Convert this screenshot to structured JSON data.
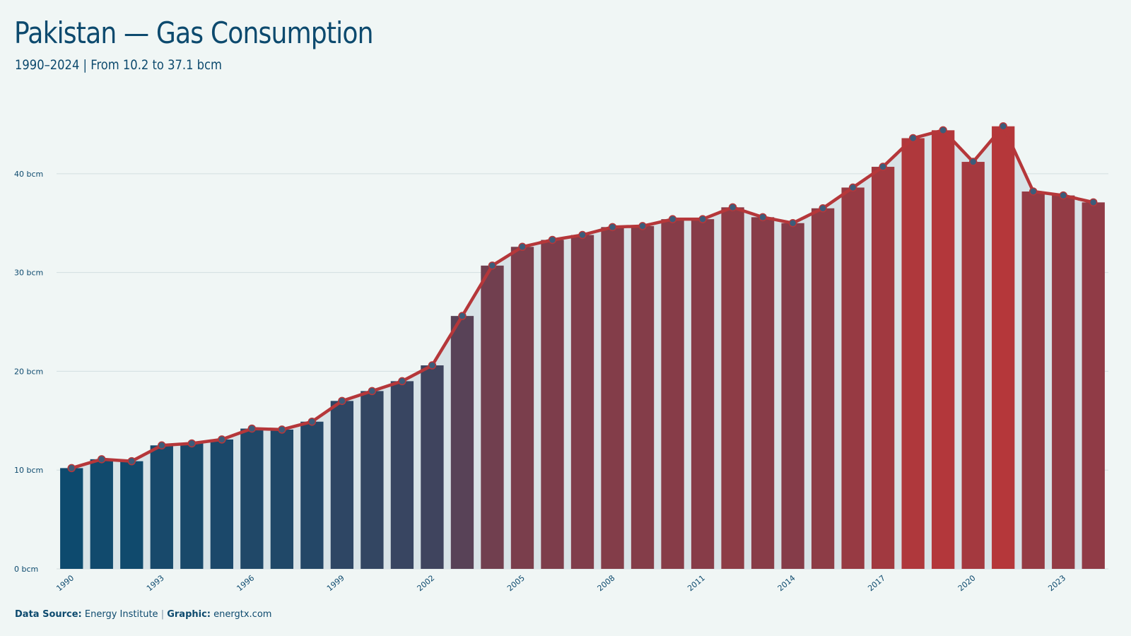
{
  "header": {
    "title": "Pakistan — Gas Consumption",
    "subtitle": "1990–2024 | From 10.2 to 37.1 bcm"
  },
  "footer": {
    "source_label": "Data Source:",
    "source_value": "Energy Institute",
    "separator": "|",
    "graphic_label": "Graphic:",
    "graphic_value": "energtx.com"
  },
  "colors": {
    "background": "#f0f6f5",
    "line": "#b5373a",
    "marker_fill": "#3c5c7a",
    "bar_low": "#0d4a6e",
    "bar_high": "#b5373a",
    "area": "#d8e3e7",
    "grid": "#d3dfe0"
  },
  "chart_data": {
    "type": "bar",
    "x": [
      1990,
      1991,
      1992,
      1993,
      1994,
      1995,
      1996,
      1997,
      1998,
      1999,
      2000,
      2001,
      2002,
      2003,
      2004,
      2005,
      2006,
      2007,
      2008,
      2009,
      2010,
      2011,
      2012,
      2013,
      2014,
      2015,
      2016,
      2017,
      2018,
      2019,
      2020,
      2021,
      2022,
      2023,
      2024
    ],
    "values": [
      10.2,
      11.1,
      10.9,
      12.5,
      12.7,
      13.1,
      14.2,
      14.1,
      14.9,
      17.0,
      18.0,
      19.0,
      20.6,
      25.6,
      30.7,
      32.6,
      33.3,
      33.8,
      34.6,
      34.7,
      35.4,
      35.4,
      36.6,
      35.6,
      35.0,
      36.5,
      38.6,
      40.7,
      43.6,
      44.4,
      41.2,
      44.8,
      38.2,
      37.8,
      37.1
    ],
    "overlay": "line-with-markers",
    "xticks": [
      "1990",
      "1993",
      "1996",
      "1999",
      "2002",
      "2005",
      "2008",
      "2011",
      "2014",
      "2017",
      "2020",
      "2023"
    ],
    "yticks": [
      "0 bcm",
      "10 bcm",
      "20 bcm",
      "30 bcm",
      "40 bcm"
    ],
    "ylim": [
      0,
      48
    ],
    "grid": "horizontal",
    "legend": "none"
  }
}
